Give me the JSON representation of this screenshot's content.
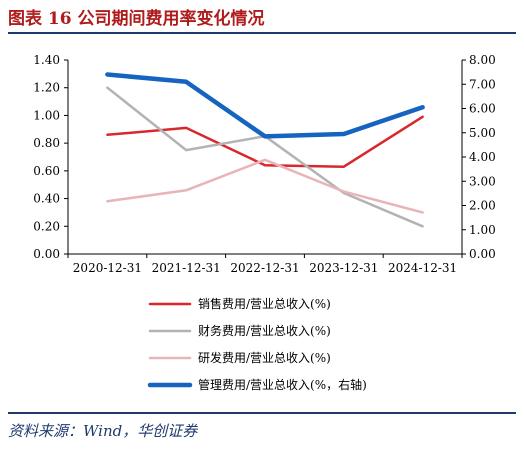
{
  "header": {
    "title": "图表 16  公司期间费用率变化情况"
  },
  "footer": {
    "source": "资料来源：Wind，华创证券"
  },
  "colors": {
    "title": "#b01c1c",
    "rule": "#1f3a6e",
    "sales": "#d9272e",
    "finance": "#b3b3b3",
    "rnd": "#e8b4b8",
    "admin": "#1565c0"
  },
  "chart_data": {
    "type": "line",
    "x": [
      "2020-12-31",
      "2021-12-31",
      "2022-12-31",
      "2023-12-31",
      "2024-12-31"
    ],
    "y_left": {
      "ylim": [
        0,
        1.4
      ],
      "ticks": [
        "0.00",
        "0.20",
        "0.40",
        "0.60",
        "0.80",
        "1.00",
        "1.20",
        "1.40"
      ]
    },
    "y_right": {
      "ylim": [
        0,
        8
      ],
      "ticks": [
        "0.00",
        "1.00",
        "2.00",
        "3.00",
        "4.00",
        "5.00",
        "6.00",
        "7.00",
        "8.00"
      ]
    },
    "legend_placement": "bottom",
    "grid": false,
    "series": [
      {
        "name": "销售费用/营业总收入(%)",
        "axis": "left",
        "color": "#d9272e",
        "values": [
          0.86,
          0.91,
          0.64,
          0.63,
          0.99
        ]
      },
      {
        "name": "财务费用/营业总收入(%)",
        "axis": "left",
        "color": "#b3b3b3",
        "values": [
          1.2,
          0.75,
          0.85,
          0.44,
          0.2
        ]
      },
      {
        "name": "研发费用/营业总收入(%)",
        "axis": "left",
        "color": "#e8b4b8",
        "values": [
          0.38,
          0.46,
          0.68,
          0.45,
          0.3
        ]
      },
      {
        "name": "管理费用/营业总收入(%，右轴)",
        "axis": "right",
        "color": "#1565c0",
        "values": [
          7.4,
          7.1,
          4.85,
          4.95,
          6.05
        ]
      }
    ]
  }
}
